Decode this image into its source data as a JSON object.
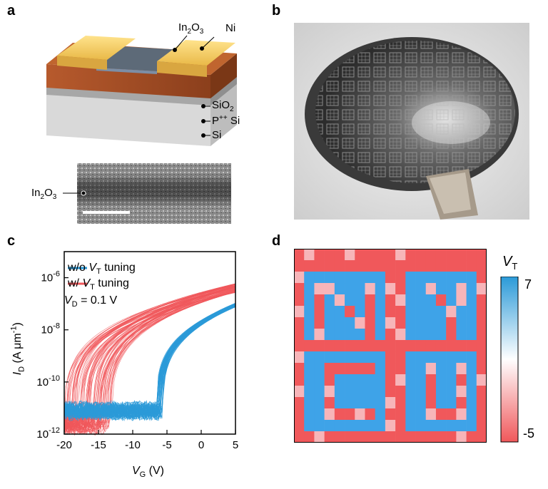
{
  "panels": {
    "a": {
      "letter": "a",
      "labels": {
        "in2o3_top": "In",
        "in2o3_top_sub": "2",
        "in2o3_top_o": "O",
        "in2o3_top_sub2": "3",
        "ni": "Ni",
        "sio2": "SiO",
        "sio2_sub": "2",
        "p_si": "P",
        "p_si_sup": "++",
        "p_si_rest": " Si",
        "si": "Si"
      },
      "tem_label": "In₂O₃"
    },
    "b": {
      "letter": "b"
    },
    "c": {
      "letter": "c",
      "legend": [
        {
          "text": "w/o Vₜ tuning",
          "color": "#2b9ad8"
        },
        {
          "text": "w/ Vₜ tuning",
          "color": "#f0585b"
        }
      ],
      "legend_main_1": "w/o ",
      "legend_v_1": "V",
      "legend_sub_1": "T",
      "legend_rest_1": " tuning",
      "legend_main_2": "w/ ",
      "legend_v_2": "V",
      "legend_sub_2": "T",
      "legend_rest_2": " tuning",
      "vd_label": "V",
      "vd_sub": "D",
      "vd_value": " = 0.1 V",
      "ylabel_main": "I",
      "ylabel_sub": "D",
      "ylabel_unit": " (A μm",
      "ylabel_sup": "-1",
      "ylabel_close": ")",
      "xlabel_main": "V",
      "xlabel_sub": "G",
      "xlabel_unit": " (V)"
    },
    "d": {
      "letter": "d",
      "colorbar_title": "V",
      "colorbar_title_sub": "T",
      "colorbar_max": "7",
      "colorbar_min": "-5"
    }
  },
  "chart_data": {
    "type": "line",
    "xlabel": "VG (V)",
    "ylabel": "ID (A μm-1)",
    "xlim": [
      -20,
      5
    ],
    "ylim_log10": [
      -12,
      -5
    ],
    "log_y": true,
    "xticks": [
      "-20",
      "-15",
      "-10",
      "-5",
      "0",
      "5"
    ],
    "yticks": [
      {
        "base": "10",
        "exp": "-12"
      },
      {
        "base": "10",
        "exp": "-10"
      },
      {
        "base": "10",
        "exp": "-8"
      },
      {
        "base": "10",
        "exp": "-6"
      }
    ],
    "series": [
      {
        "name": "w/o VT tuning",
        "color": "#2b9ad8",
        "threshold_range_V": [
          -6.5,
          -5.5
        ],
        "off_current_log10": -11.1,
        "on_current_log10_at_5V": -7.05
      },
      {
        "name": "w/ VT tuning",
        "color": "#f0585b",
        "threshold_range_V": [
          -20,
          -13
        ],
        "off_current_log10": -11.5,
        "on_current_log10_at_5V": -6.4
      }
    ]
  },
  "heatmap_d": {
    "type": "heatmap",
    "colors": {
      "blue": "#3ea3e8",
      "red": "#f0585b",
      "pink": "#f7b5b9"
    },
    "pattern": [
      "RPRRRPRRRRPRRRRRRRR",
      "RRRRRRRRRRRRRRRRRRR",
      "PBBBBBBBBRRBBBBBBBR",
      "RBPPBBBPBPRBBPBBPBP",
      "RBRBPBBRBRPBBBRBPBR",
      "PBRBBRBRBRRBBBBPBBR",
      "RBRBBBPRBPRBBBBRBBR",
      "RBPBBBBRBRPBBBBRBBR",
      "RRRRRRRRRRRRRRRRRRR",
      "PBBBBBBBBRRBBBBBBBR",
      "RBBRRRRRBRRBBPBBPBR",
      "RBBRBBBBBRPBBRBBRBP",
      "PBBPBBBBBRRBBRBBPBR",
      "RBBRBBBBBPRBBRBBRBR",
      "RBBPRRPRBRRBBPRRPBR",
      "RBBBBBBBBPRBBBBBBBR",
      "RRPRRRRRRRRRRRRRPRR"
    ]
  }
}
